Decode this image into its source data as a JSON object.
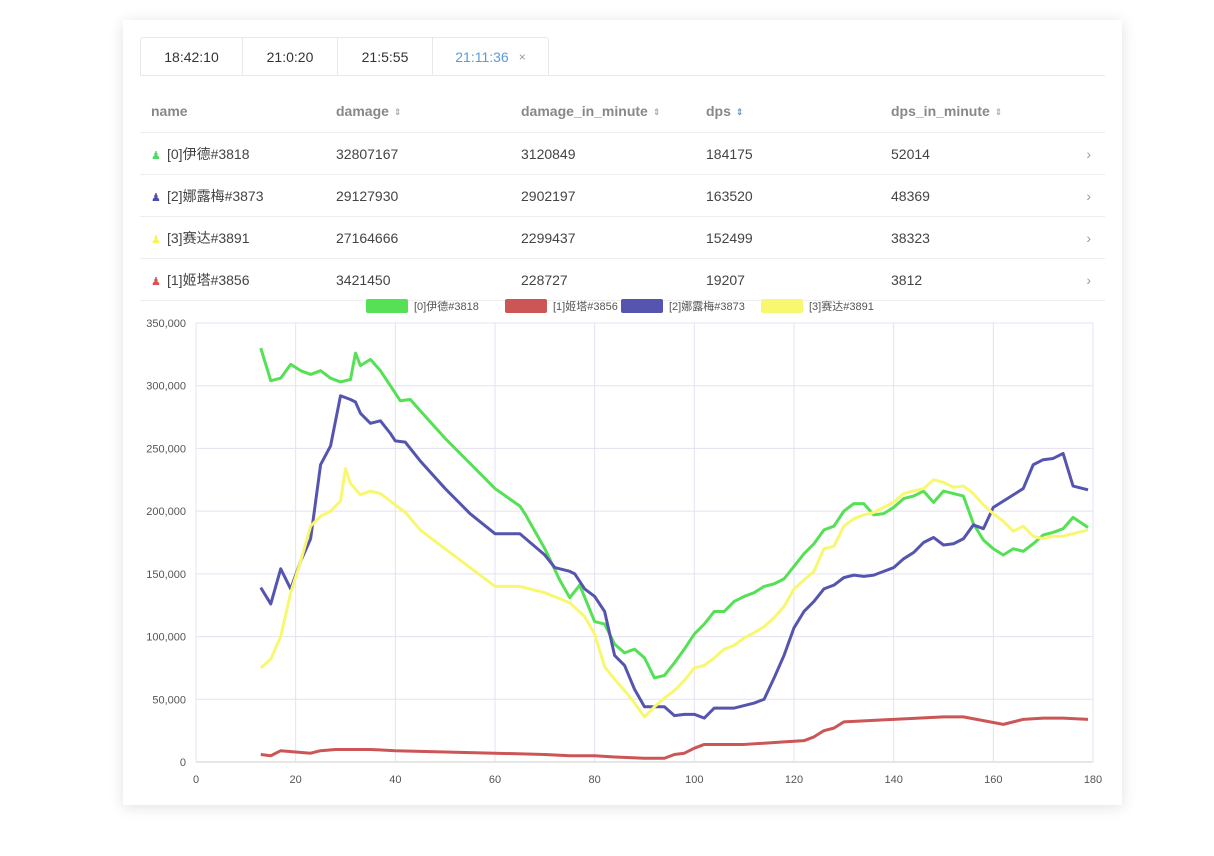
{
  "tabs": [
    {
      "label": "18:42:10"
    },
    {
      "label": "21:0:20"
    },
    {
      "label": "21:5:55"
    },
    {
      "label": "21:11:36",
      "close": "×"
    }
  ],
  "table": {
    "headers": [
      "name",
      "damage",
      "damage_in_minute",
      "dps",
      "dps_in_minute"
    ],
    "sort_icon": "⇕",
    "rows": [
      {
        "name": "[0]伊德#3818",
        "color": "#4cd964",
        "damage": "32807167",
        "dim": "3120849",
        "dps": "184175",
        "dpsim": "52014"
      },
      {
        "name": "[2]娜露梅#3873",
        "color": "#4b4bb4",
        "damage": "29127930",
        "dim": "2902197",
        "dps": "163520",
        "dpsim": "48369"
      },
      {
        "name": "[3]赛达#3891",
        "color": "#f5f55a",
        "damage": "27164666",
        "dim": "2299437",
        "dps": "152499",
        "dpsim": "38323"
      },
      {
        "name": "[1]姬塔#3856",
        "color": "#d9534f",
        "damage": "3421450",
        "dim": "228727",
        "dps": "19207",
        "dpsim": "3812"
      }
    ]
  },
  "chart_data": {
    "type": "line",
    "xlim": [
      0,
      180
    ],
    "ylim": [
      0,
      350000
    ],
    "xticks": [
      0,
      20,
      40,
      60,
      80,
      100,
      120,
      140,
      160,
      180
    ],
    "yticks": [
      0,
      50000,
      100000,
      150000,
      200000,
      250000,
      300000,
      350000
    ],
    "ytick_labels": [
      "0",
      "50,000",
      "100,000",
      "150,000",
      "200,000",
      "250,000",
      "300,000",
      "350,000"
    ],
    "legend_position": "top-center",
    "series": [
      {
        "name": "[0]伊德#3818",
        "color": "#55e055",
        "points": [
          [
            13,
            330
          ],
          [
            15,
            304
          ],
          [
            17,
            306
          ],
          [
            19,
            317
          ],
          [
            21,
            312
          ],
          [
            23,
            309
          ],
          [
            25,
            312
          ],
          [
            27,
            306
          ],
          [
            29,
            303
          ],
          [
            31,
            305
          ],
          [
            32,
            326
          ],
          [
            33,
            316
          ],
          [
            35,
            321
          ],
          [
            37,
            312
          ],
          [
            39,
            300
          ],
          [
            41,
            288
          ],
          [
            43,
            289
          ],
          [
            45,
            280
          ],
          [
            50,
            258
          ],
          [
            55,
            238
          ],
          [
            60,
            218
          ],
          [
            65,
            204
          ],
          [
            66,
            198
          ],
          [
            70,
            170
          ],
          [
            73,
            145
          ],
          [
            75,
            131
          ],
          [
            77,
            141
          ],
          [
            80,
            112
          ],
          [
            82,
            110
          ],
          [
            84,
            94
          ],
          [
            86,
            87
          ],
          [
            88,
            90
          ],
          [
            90,
            83
          ],
          [
            92,
            67
          ],
          [
            94,
            69
          ],
          [
            96,
            79
          ],
          [
            98,
            90
          ],
          [
            100,
            102
          ],
          [
            102,
            110
          ],
          [
            104,
            120
          ],
          [
            106,
            120
          ],
          [
            108,
            128
          ],
          [
            110,
            132
          ],
          [
            112,
            135
          ],
          [
            114,
            140
          ],
          [
            116,
            142
          ],
          [
            118,
            146
          ],
          [
            120,
            156
          ],
          [
            122,
            166
          ],
          [
            124,
            174
          ],
          [
            126,
            185
          ],
          [
            128,
            188
          ],
          [
            130,
            200
          ],
          [
            132,
            206
          ],
          [
            134,
            206
          ],
          [
            136,
            197
          ],
          [
            138,
            198
          ],
          [
            140,
            203
          ],
          [
            142,
            210
          ],
          [
            144,
            212
          ],
          [
            146,
            216
          ],
          [
            148,
            207
          ],
          [
            150,
            216
          ],
          [
            152,
            214
          ],
          [
            154,
            212
          ],
          [
            156,
            190
          ],
          [
            158,
            177
          ],
          [
            160,
            170
          ],
          [
            162,
            165
          ],
          [
            164,
            170
          ],
          [
            166,
            168
          ],
          [
            168,
            174
          ],
          [
            170,
            181
          ],
          [
            172,
            183
          ],
          [
            174,
            186
          ],
          [
            176,
            195
          ],
          [
            179,
            187
          ]
        ]
      },
      {
        "name": "[1]姬塔#3856",
        "color": "#cc5555",
        "points": [
          [
            13,
            6
          ],
          [
            15,
            5
          ],
          [
            17,
            9
          ],
          [
            20,
            8
          ],
          [
            23,
            7
          ],
          [
            25,
            9
          ],
          [
            28,
            10
          ],
          [
            35,
            10
          ],
          [
            40,
            9
          ],
          [
            50,
            8
          ],
          [
            60,
            7
          ],
          [
            70,
            6
          ],
          [
            75,
            5
          ],
          [
            80,
            5
          ],
          [
            84,
            4
          ],
          [
            90,
            3
          ],
          [
            94,
            3
          ],
          [
            96,
            6
          ],
          [
            98,
            7
          ],
          [
            100,
            11
          ],
          [
            102,
            14
          ],
          [
            110,
            14
          ],
          [
            118,
            16
          ],
          [
            122,
            17
          ],
          [
            124,
            20
          ],
          [
            126,
            25
          ],
          [
            128,
            27
          ],
          [
            130,
            32
          ],
          [
            135,
            33
          ],
          [
            140,
            34
          ],
          [
            145,
            35
          ],
          [
            150,
            36
          ],
          [
            154,
            36
          ],
          [
            158,
            33
          ],
          [
            162,
            30
          ],
          [
            166,
            34
          ],
          [
            170,
            35
          ],
          [
            174,
            35
          ],
          [
            179,
            34
          ]
        ]
      },
      {
        "name": "[2]娜露梅#3873",
        "color": "#5555b0",
        "points": [
          [
            13,
            139
          ],
          [
            15,
            126
          ],
          [
            17,
            154
          ],
          [
            19,
            138
          ],
          [
            21,
            160
          ],
          [
            23,
            178
          ],
          [
            25,
            237
          ],
          [
            27,
            252
          ],
          [
            29,
            292
          ],
          [
            31,
            289
          ],
          [
            32,
            287
          ],
          [
            33,
            278
          ],
          [
            35,
            270
          ],
          [
            37,
            272
          ],
          [
            39,
            262
          ],
          [
            40,
            256
          ],
          [
            42,
            255
          ],
          [
            45,
            240
          ],
          [
            50,
            218
          ],
          [
            55,
            198
          ],
          [
            60,
            182
          ],
          [
            65,
            182
          ],
          [
            70,
            165
          ],
          [
            72,
            155
          ],
          [
            75,
            152
          ],
          [
            76,
            150
          ],
          [
            78,
            138
          ],
          [
            80,
            132
          ],
          [
            82,
            120
          ],
          [
            84,
            85
          ],
          [
            86,
            77
          ],
          [
            88,
            58
          ],
          [
            90,
            44
          ],
          [
            92,
            44
          ],
          [
            94,
            44
          ],
          [
            96,
            37
          ],
          [
            98,
            38
          ],
          [
            100,
            38
          ],
          [
            102,
            35
          ],
          [
            104,
            43
          ],
          [
            106,
            43
          ],
          [
            108,
            43
          ],
          [
            110,
            45
          ],
          [
            112,
            47
          ],
          [
            114,
            50
          ],
          [
            116,
            67
          ],
          [
            118,
            85
          ],
          [
            120,
            107
          ],
          [
            122,
            120
          ],
          [
            124,
            128
          ],
          [
            126,
            138
          ],
          [
            128,
            141
          ],
          [
            130,
            147
          ],
          [
            132,
            149
          ],
          [
            134,
            148
          ],
          [
            136,
            149
          ],
          [
            138,
            152
          ],
          [
            140,
            155
          ],
          [
            142,
            162
          ],
          [
            144,
            167
          ],
          [
            146,
            175
          ],
          [
            148,
            179
          ],
          [
            150,
            173
          ],
          [
            152,
            174
          ],
          [
            154,
            178
          ],
          [
            156,
            189
          ],
          [
            158,
            186
          ],
          [
            160,
            203
          ],
          [
            162,
            208
          ],
          [
            164,
            213
          ],
          [
            166,
            218
          ],
          [
            168,
            237
          ],
          [
            170,
            241
          ],
          [
            172,
            242
          ],
          [
            174,
            246
          ],
          [
            176,
            220
          ],
          [
            179,
            217
          ]
        ]
      },
      {
        "name": "[3]赛达#3891",
        "color": "#f8f870",
        "points": [
          [
            13,
            75
          ],
          [
            15,
            82
          ],
          [
            17,
            100
          ],
          [
            19,
            135
          ],
          [
            21,
            160
          ],
          [
            23,
            188
          ],
          [
            25,
            196
          ],
          [
            27,
            200
          ],
          [
            29,
            208
          ],
          [
            30,
            234
          ],
          [
            31,
            222
          ],
          [
            33,
            213
          ],
          [
            35,
            216
          ],
          [
            37,
            214
          ],
          [
            39,
            208
          ],
          [
            42,
            199
          ],
          [
            45,
            185
          ],
          [
            50,
            170
          ],
          [
            55,
            155
          ],
          [
            60,
            140
          ],
          [
            65,
            140
          ],
          [
            70,
            135
          ],
          [
            75,
            127
          ],
          [
            78,
            116
          ],
          [
            80,
            102
          ],
          [
            82,
            76
          ],
          [
            84,
            66
          ],
          [
            86,
            57
          ],
          [
            88,
            47
          ],
          [
            90,
            36
          ],
          [
            92,
            44
          ],
          [
            94,
            51
          ],
          [
            96,
            57
          ],
          [
            98,
            65
          ],
          [
            100,
            75
          ],
          [
            102,
            77
          ],
          [
            104,
            83
          ],
          [
            106,
            90
          ],
          [
            108,
            93
          ],
          [
            110,
            99
          ],
          [
            112,
            103
          ],
          [
            114,
            108
          ],
          [
            116,
            115
          ],
          [
            118,
            124
          ],
          [
            120,
            138
          ],
          [
            122,
            145
          ],
          [
            124,
            152
          ],
          [
            126,
            170
          ],
          [
            128,
            172
          ],
          [
            130,
            188
          ],
          [
            132,
            194
          ],
          [
            134,
            197
          ],
          [
            136,
            199
          ],
          [
            138,
            203
          ],
          [
            140,
            207
          ],
          [
            142,
            214
          ],
          [
            144,
            216
          ],
          [
            146,
            218
          ],
          [
            148,
            225
          ],
          [
            150,
            223
          ],
          [
            152,
            219
          ],
          [
            154,
            220
          ],
          [
            156,
            214
          ],
          [
            158,
            205
          ],
          [
            160,
            198
          ],
          [
            162,
            192
          ],
          [
            164,
            184
          ],
          [
            166,
            188
          ],
          [
            168,
            180
          ],
          [
            170,
            178
          ],
          [
            172,
            180
          ],
          [
            174,
            180
          ],
          [
            176,
            182
          ],
          [
            179,
            185
          ]
        ]
      }
    ],
    "y_unit_note": "points y values in thousands"
  }
}
